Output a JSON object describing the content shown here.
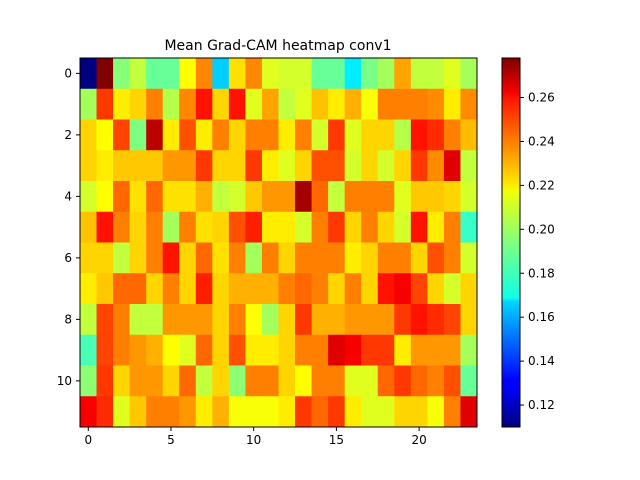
{
  "chart_data": {
    "type": "heatmap",
    "title": "Mean Grad-CAM heatmap conv1",
    "xlabel": "",
    "ylabel": "",
    "colormap": "jet",
    "vmin": 0.11,
    "vmax": 0.278,
    "x_ticks": [
      0,
      5,
      10,
      15,
      20
    ],
    "y_ticks": [
      0,
      2,
      4,
      6,
      8,
      10
    ],
    "colorbar_ticks": [
      0.12,
      0.14,
      0.16,
      0.18,
      0.2,
      0.22,
      0.24,
      0.26
    ],
    "colorbar_tick_labels": [
      "0.12",
      "0.14",
      "0.16",
      "0.18",
      "0.20",
      "0.22",
      "0.24",
      "0.26"
    ],
    "rows": 12,
    "cols": 24,
    "values": [
      [
        0.11,
        0.278,
        0.195,
        0.205,
        0.19,
        0.19,
        0.215,
        0.235,
        0.165,
        0.22,
        0.235,
        0.21,
        0.208,
        0.208,
        0.19,
        0.19,
        0.17,
        0.193,
        0.2,
        0.23,
        0.205,
        0.205,
        0.21,
        0.2
      ],
      [
        0.2,
        0.248,
        0.218,
        0.222,
        0.236,
        0.203,
        0.235,
        0.254,
        0.222,
        0.254,
        0.21,
        0.23,
        0.205,
        0.21,
        0.225,
        0.218,
        0.228,
        0.214,
        0.236,
        0.236,
        0.236,
        0.234,
        0.218,
        0.234
      ],
      [
        0.222,
        0.215,
        0.246,
        0.194,
        0.268,
        0.218,
        0.244,
        0.218,
        0.236,
        0.222,
        0.236,
        0.236,
        0.218,
        0.236,
        0.208,
        0.248,
        0.21,
        0.222,
        0.222,
        0.203,
        0.254,
        0.25,
        0.236,
        0.226
      ],
      [
        0.222,
        0.218,
        0.224,
        0.224,
        0.224,
        0.232,
        0.232,
        0.248,
        0.222,
        0.222,
        0.248,
        0.218,
        0.21,
        0.222,
        0.244,
        0.244,
        0.208,
        0.222,
        0.208,
        0.222,
        0.248,
        0.234,
        0.262,
        0.205
      ],
      [
        0.208,
        0.215,
        0.24,
        0.22,
        0.24,
        0.22,
        0.22,
        0.228,
        0.205,
        0.208,
        0.224,
        0.232,
        0.232,
        0.272,
        0.24,
        0.205,
        0.236,
        0.236,
        0.236,
        0.21,
        0.224,
        0.224,
        0.222,
        0.208
      ],
      [
        0.225,
        0.254,
        0.236,
        0.222,
        0.236,
        0.2,
        0.236,
        0.22,
        0.222,
        0.244,
        0.252,
        0.218,
        0.218,
        0.208,
        0.236,
        0.248,
        0.222,
        0.236,
        0.222,
        0.208,
        0.254,
        0.218,
        0.236,
        0.182
      ],
      [
        0.222,
        0.222,
        0.205,
        0.222,
        0.236,
        0.254,
        0.222,
        0.24,
        0.22,
        0.236,
        0.2,
        0.236,
        0.222,
        0.236,
        0.236,
        0.236,
        0.218,
        0.222,
        0.236,
        0.236,
        0.222,
        0.244,
        0.236,
        0.208
      ],
      [
        0.218,
        0.224,
        0.24,
        0.24,
        0.222,
        0.236,
        0.222,
        0.252,
        0.222,
        0.228,
        0.228,
        0.228,
        0.236,
        0.24,
        0.236,
        0.222,
        0.236,
        0.222,
        0.254,
        0.258,
        0.246,
        0.222,
        0.208,
        0.222
      ],
      [
        0.205,
        0.246,
        0.236,
        0.205,
        0.205,
        0.232,
        0.232,
        0.232,
        0.222,
        0.236,
        0.215,
        0.2,
        0.222,
        0.248,
        0.228,
        0.228,
        0.232,
        0.232,
        0.232,
        0.248,
        0.254,
        0.25,
        0.246,
        0.222
      ],
      [
        0.185,
        0.246,
        0.236,
        0.232,
        0.228,
        0.215,
        0.21,
        0.24,
        0.222,
        0.244,
        0.218,
        0.218,
        0.222,
        0.236,
        0.236,
        0.262,
        0.258,
        0.248,
        0.248,
        0.218,
        0.232,
        0.232,
        0.232,
        0.2
      ],
      [
        0.196,
        0.248,
        0.222,
        0.232,
        0.232,
        0.222,
        0.24,
        0.205,
        0.222,
        0.196,
        0.236,
        0.236,
        0.222,
        0.215,
        0.236,
        0.236,
        0.21,
        0.21,
        0.24,
        0.248,
        0.24,
        0.236,
        0.244,
        0.19
      ],
      [
        0.258,
        0.25,
        0.21,
        0.224,
        0.236,
        0.236,
        0.232,
        0.218,
        0.228,
        0.214,
        0.214,
        0.214,
        0.218,
        0.248,
        0.24,
        0.248,
        0.218,
        0.21,
        0.21,
        0.222,
        0.222,
        0.214,
        0.236,
        0.262
      ]
    ]
  }
}
